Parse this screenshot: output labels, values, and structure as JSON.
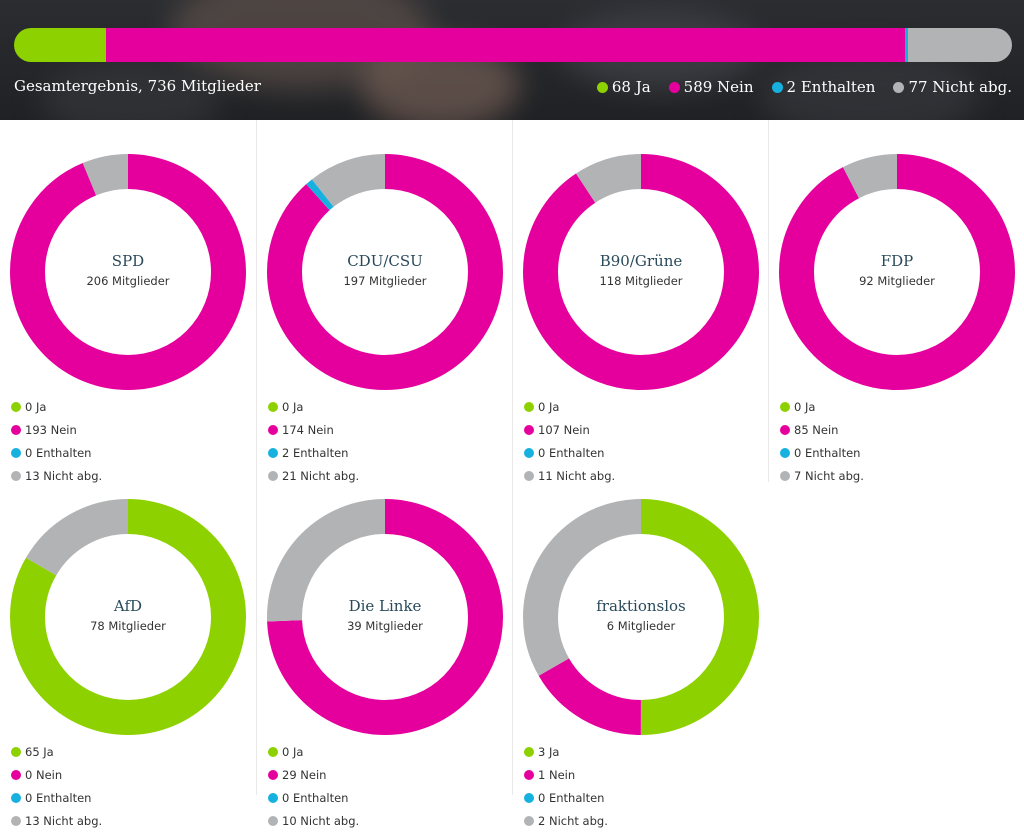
{
  "colors": {
    "ja": "#8ed100",
    "nein": "#e5009d",
    "enthalten": "#17b1e0",
    "nicht": "#b2b3b5"
  },
  "summary": {
    "title": "Gesamtergebnis, 736 Mitglieder",
    "legend": {
      "ja": "68 Ja",
      "nein": "589 Nein",
      "enthalten": "2 Enthalten",
      "nicht": "77 Nicht abg."
    }
  },
  "chart_data": [
    {
      "type": "bar",
      "title": "Gesamtergebnis, 736 Mitglieder",
      "categories": [
        "Ja",
        "Nein",
        "Enthalten",
        "Nicht abg."
      ],
      "values": [
        68,
        589,
        2,
        77
      ]
    },
    {
      "type": "pie",
      "title": "SPD",
      "subtitle": "206 Mitglieder",
      "categories": [
        "Ja",
        "Nein",
        "Enthalten",
        "Nicht abg."
      ],
      "values": [
        0,
        193,
        0,
        13
      ],
      "labels": [
        "0 Ja",
        "193 Nein",
        "0 Enthalten",
        "13 Nicht abg."
      ]
    },
    {
      "type": "pie",
      "title": "CDU/CSU",
      "subtitle": "197 Mitglieder",
      "categories": [
        "Ja",
        "Nein",
        "Enthalten",
        "Nicht abg."
      ],
      "values": [
        0,
        174,
        2,
        21
      ],
      "labels": [
        "0 Ja",
        "174 Nein",
        "2 Enthalten",
        "21 Nicht abg."
      ]
    },
    {
      "type": "pie",
      "title": "B90/Grüne",
      "subtitle": "118 Mitglieder",
      "categories": [
        "Ja",
        "Nein",
        "Enthalten",
        "Nicht abg."
      ],
      "values": [
        0,
        107,
        0,
        11
      ],
      "labels": [
        "0 Ja",
        "107 Nein",
        "0 Enthalten",
        "11 Nicht abg."
      ]
    },
    {
      "type": "pie",
      "title": "FDP",
      "subtitle": "92 Mitglieder",
      "categories": [
        "Ja",
        "Nein",
        "Enthalten",
        "Nicht abg."
      ],
      "values": [
        0,
        85,
        0,
        7
      ],
      "labels": [
        "0 Ja",
        "85 Nein",
        "0 Enthalten",
        "7 Nicht abg."
      ]
    },
    {
      "type": "pie",
      "title": "AfD",
      "subtitle": "78 Mitglieder",
      "categories": [
        "Ja",
        "Nein",
        "Enthalten",
        "Nicht abg."
      ],
      "values": [
        65,
        0,
        0,
        13
      ],
      "labels": [
        "65 Ja",
        "0 Nein",
        "0 Enthalten",
        "13 Nicht abg."
      ]
    },
    {
      "type": "pie",
      "title": "Die Linke",
      "subtitle": "39 Mitglieder",
      "categories": [
        "Ja",
        "Nein",
        "Enthalten",
        "Nicht abg."
      ],
      "values": [
        0,
        29,
        0,
        10
      ],
      "labels": [
        "0 Ja",
        "29 Nein",
        "0 Enthalten",
        "10 Nicht abg."
      ]
    },
    {
      "type": "pie",
      "title": "fraktionslos",
      "subtitle": "6 Mitglieder",
      "categories": [
        "Ja",
        "Nein",
        "Enthalten",
        "Nicht abg."
      ],
      "values": [
        3,
        1,
        0,
        2
      ],
      "labels": [
        "3 Ja",
        "1 Nein",
        "0 Enthalten",
        "2 Nicht abg."
      ]
    }
  ]
}
